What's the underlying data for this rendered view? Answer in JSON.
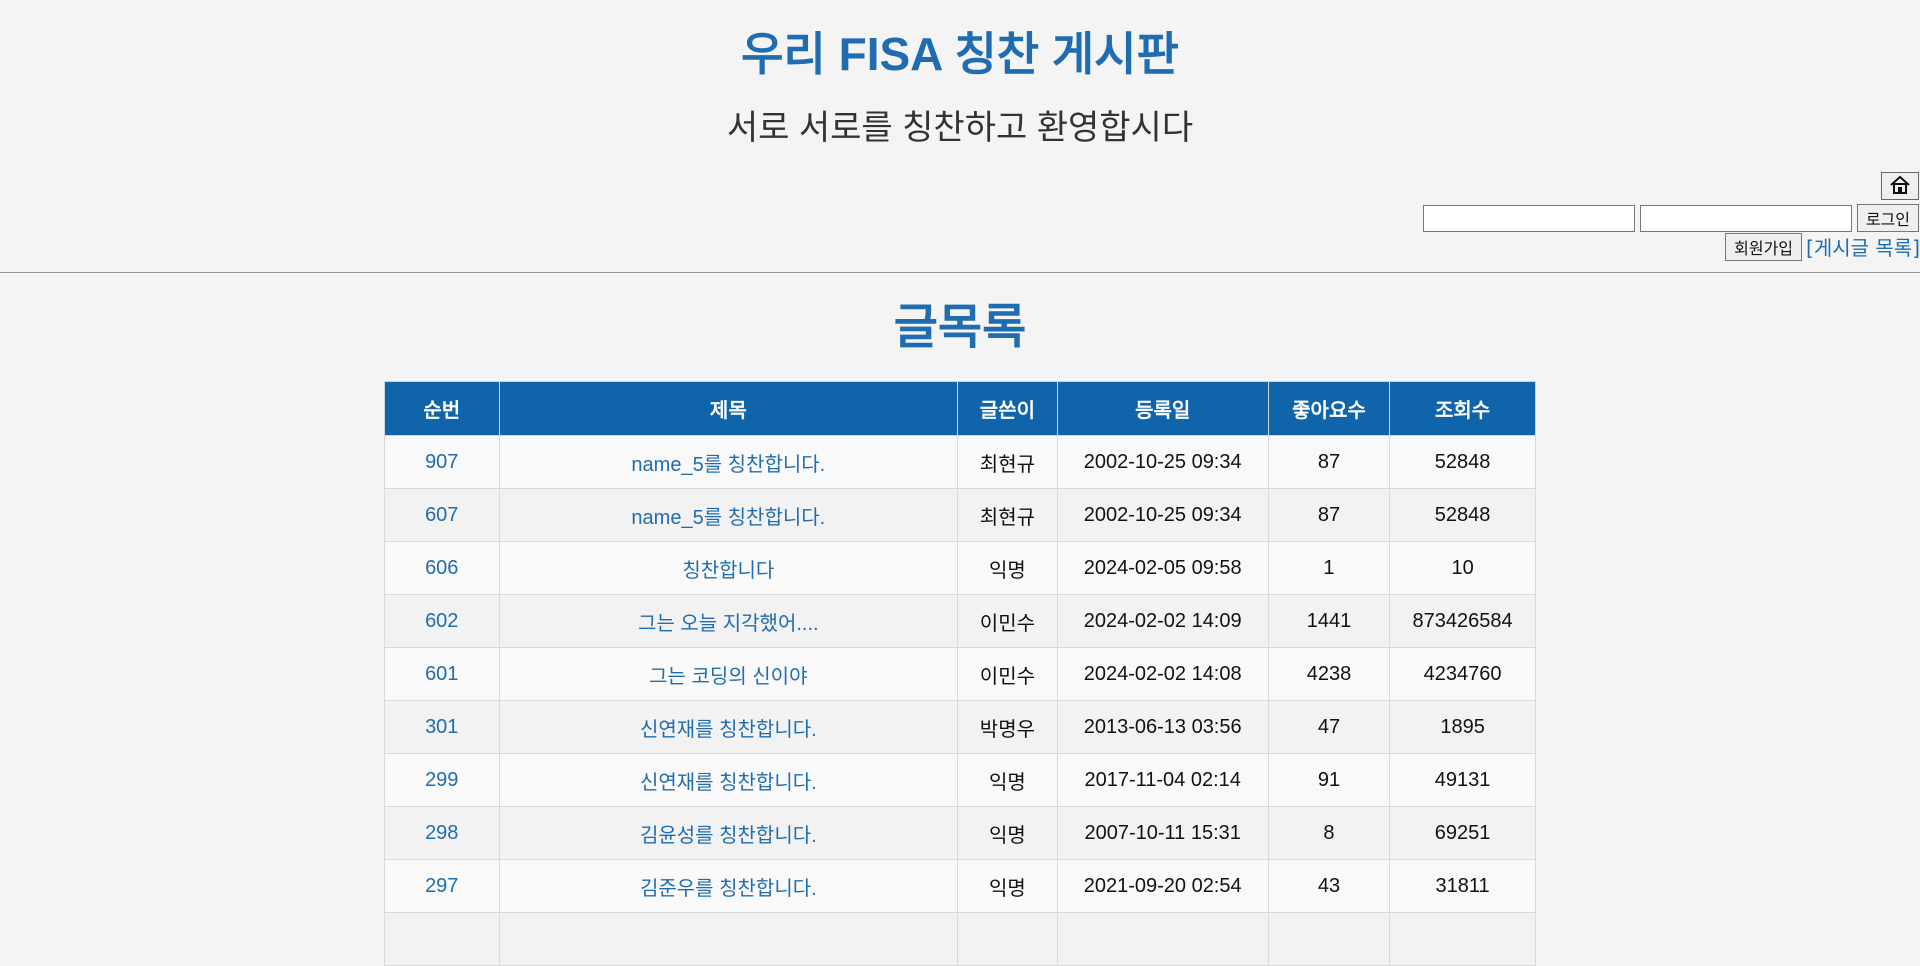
{
  "header": {
    "title": "우리 FISA 칭찬 게시판",
    "subtitle": "서로 서로를 칭찬하고 환영합시다"
  },
  "auth": {
    "home_icon": "home-icon",
    "id_value": "",
    "pw_value": "",
    "login_label": "로그인",
    "signup_label": "회원가입",
    "board_link_label": "[게시글 목록]"
  },
  "list": {
    "heading": "글목록",
    "columns": [
      "순번",
      "제목",
      "글쓴이",
      "등록일",
      "좋아요수",
      "조회수"
    ],
    "rows": [
      {
        "num": "907",
        "title": "name_5를 칭찬합니다.",
        "writer": "최현규",
        "date": "2002-10-25 09:34",
        "likes": "87",
        "views": "52848"
      },
      {
        "num": "607",
        "title": "name_5를 칭찬합니다.",
        "writer": "최현규",
        "date": "2002-10-25 09:34",
        "likes": "87",
        "views": "52848"
      },
      {
        "num": "606",
        "title": "칭찬합니다",
        "writer": "익명",
        "date": "2024-02-05 09:58",
        "likes": "1",
        "views": "10"
      },
      {
        "num": "602",
        "title": "그는 오늘 지각했어....",
        "writer": "이민수",
        "date": "2024-02-02 14:09",
        "likes": "1441",
        "views": "873426584"
      },
      {
        "num": "601",
        "title": "그는 코딩의 신이야",
        "writer": "이민수",
        "date": "2024-02-02 14:08",
        "likes": "4238",
        "views": "4234760"
      },
      {
        "num": "301",
        "title": "신연재를 칭찬합니다.",
        "writer": "박명우",
        "date": "2013-06-13 03:56",
        "likes": "47",
        "views": "1895"
      },
      {
        "num": "299",
        "title": "신연재를 칭찬합니다.",
        "writer": "익명",
        "date": "2017-11-04 02:14",
        "likes": "91",
        "views": "49131"
      },
      {
        "num": "298",
        "title": "김윤성를 칭찬합니다.",
        "writer": "익명",
        "date": "2007-10-11 15:31",
        "likes": "8",
        "views": "69251"
      },
      {
        "num": "297",
        "title": "김준우를 칭찬합니다.",
        "writer": "익명",
        "date": "2021-09-20 02:54",
        "likes": "43",
        "views": "31811"
      },
      {
        "num": "",
        "title": "",
        "writer": "",
        "date": "",
        "likes": "",
        "views": ""
      }
    ]
  }
}
